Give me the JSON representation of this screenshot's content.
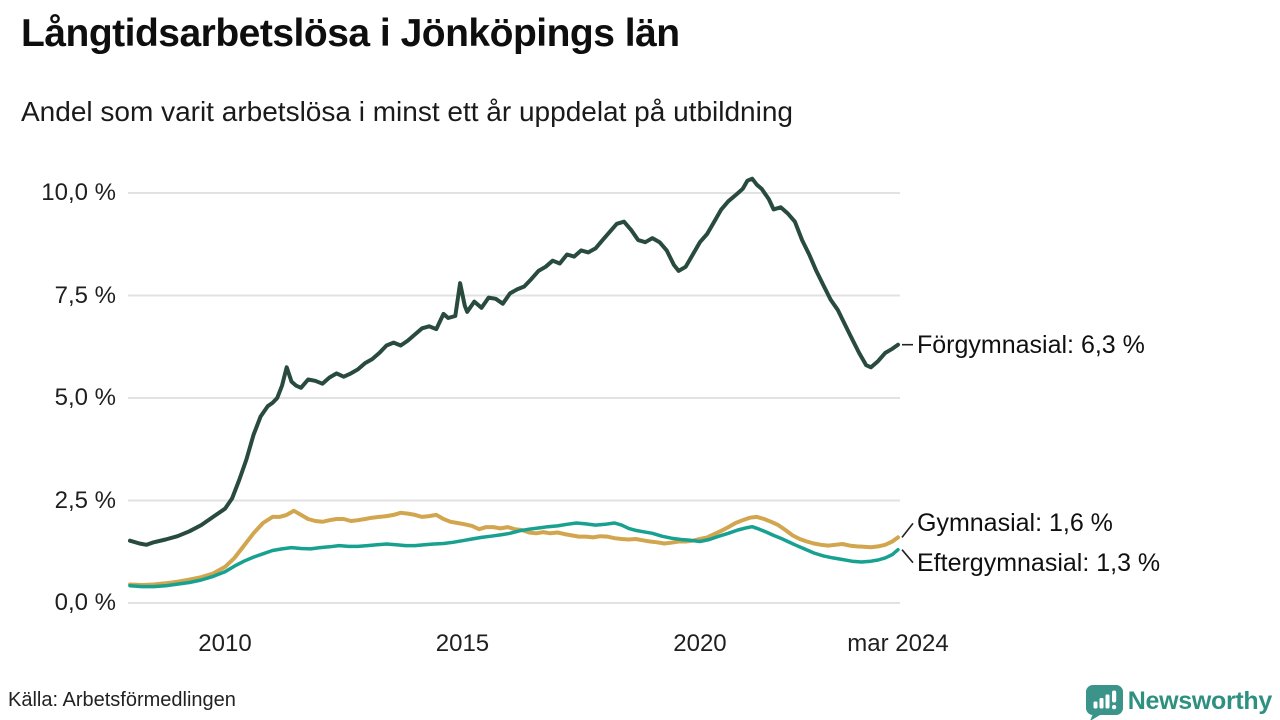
{
  "header": {
    "title": "Långtidsarbetslösa i Jönköpings län",
    "subtitle": "Andel som varit arbetslösa i minst ett år uppdelat på utbildning"
  },
  "footer": {
    "source": "Källa: Arbetsförmedlingen",
    "brand": "Newsworthy",
    "brand_text_color": "#2e9080",
    "brand_icon_color": "#3a948a"
  },
  "chart_data": {
    "type": "line",
    "title": "Långtidsarbetslösa i Jönköpings län",
    "subtitle": "Andel som varit arbetslösa i minst ett år uppdelat på utbildning",
    "xlabel": "",
    "ylabel": "",
    "xlim": [
      2008.0,
      2024.17
    ],
    "ylim": [
      0,
      10
    ],
    "grid": true,
    "gridline_color": "#e2e2e2",
    "legend_position": "end-of-line-labels-right",
    "yticks": [
      {
        "value": 0,
        "label": "0,0 %"
      },
      {
        "value": 2.5,
        "label": "2,5 %"
      },
      {
        "value": 5,
        "label": "5,0 %"
      },
      {
        "value": 7.5,
        "label": "7,5 %"
      },
      {
        "value": 10,
        "label": "10,0 %"
      }
    ],
    "xticks": [
      {
        "value": 2010,
        "label": "2010"
      },
      {
        "value": 2015,
        "label": "2015"
      },
      {
        "value": 2020,
        "label": "2020"
      },
      {
        "value": 2024.17,
        "label": "mar 2024"
      }
    ],
    "series": [
      {
        "name": "Förgymnasial",
        "end_label": "Förgymnasial: 6,3 %",
        "current_value": "6,3 %",
        "color": "#284b3e",
        "stroke_width": 4,
        "x": [
          2008.0,
          2008.2,
          2008.35,
          2008.5,
          2008.75,
          2009.0,
          2009.25,
          2009.5,
          2009.75,
          2010.0,
          2010.15,
          2010.3,
          2010.45,
          2010.6,
          2010.75,
          2010.9,
          2011.0,
          2011.1,
          2011.2,
          2011.3,
          2011.4,
          2011.5,
          2011.6,
          2011.75,
          2011.9,
          2012.05,
          2012.2,
          2012.35,
          2012.5,
          2012.65,
          2012.8,
          2012.95,
          2013.1,
          2013.25,
          2013.4,
          2013.55,
          2013.7,
          2013.85,
          2014.0,
          2014.15,
          2014.3,
          2014.45,
          2014.6,
          2014.7,
          2014.85,
          2014.95,
          2015.05,
          2015.1,
          2015.25,
          2015.4,
          2015.55,
          2015.7,
          2015.85,
          2016.0,
          2016.15,
          2016.3,
          2016.45,
          2016.6,
          2016.75,
          2016.9,
          2017.05,
          2017.2,
          2017.35,
          2017.5,
          2017.65,
          2017.8,
          2017.95,
          2018.1,
          2018.25,
          2018.4,
          2018.55,
          2018.7,
          2018.85,
          2019.0,
          2019.15,
          2019.3,
          2019.45,
          2019.55,
          2019.7,
          2019.85,
          2020.0,
          2020.15,
          2020.3,
          2020.45,
          2020.6,
          2020.75,
          2020.9,
          2021.0,
          2021.1,
          2021.2,
          2021.3,
          2021.45,
          2021.55,
          2021.7,
          2021.85,
          2022.0,
          2022.15,
          2022.3,
          2022.45,
          2022.6,
          2022.75,
          2022.9,
          2023.05,
          2023.2,
          2023.35,
          2023.5,
          2023.6,
          2023.75,
          2023.9,
          2024.05,
          2024.17
        ],
        "values": [
          1.52,
          1.45,
          1.42,
          1.48,
          1.55,
          1.63,
          1.75,
          1.9,
          2.1,
          2.3,
          2.55,
          3.0,
          3.5,
          4.1,
          4.55,
          4.8,
          4.88,
          5.0,
          5.3,
          5.75,
          5.4,
          5.3,
          5.25,
          5.45,
          5.42,
          5.35,
          5.5,
          5.6,
          5.52,
          5.6,
          5.7,
          5.85,
          5.95,
          6.1,
          6.28,
          6.35,
          6.28,
          6.4,
          6.55,
          6.7,
          6.75,
          6.68,
          7.05,
          6.95,
          7.0,
          7.8,
          7.25,
          7.1,
          7.35,
          7.2,
          7.45,
          7.42,
          7.3,
          7.55,
          7.65,
          7.72,
          7.9,
          8.1,
          8.2,
          8.35,
          8.28,
          8.5,
          8.45,
          8.6,
          8.55,
          8.65,
          8.85,
          9.05,
          9.25,
          9.3,
          9.1,
          8.85,
          8.8,
          8.9,
          8.8,
          8.6,
          8.25,
          8.1,
          8.2,
          8.5,
          8.8,
          9.0,
          9.3,
          9.6,
          9.8,
          9.95,
          10.1,
          10.3,
          10.35,
          10.2,
          10.1,
          9.85,
          9.6,
          9.65,
          9.5,
          9.3,
          8.85,
          8.5,
          8.1,
          7.75,
          7.4,
          7.15,
          6.8,
          6.45,
          6.1,
          5.8,
          5.75,
          5.9,
          6.1,
          6.2,
          6.3
        ]
      },
      {
        "name": "Gymnasial",
        "end_label": "Gymnasial: 1,6 %",
        "current_value": "1,6 %",
        "color": "#d1a64e",
        "stroke_width": 4,
        "x": [
          2008.0,
          2008.25,
          2008.5,
          2008.75,
          2009.0,
          2009.25,
          2009.5,
          2009.75,
          2010.0,
          2010.2,
          2010.4,
          2010.6,
          2010.8,
          2011.0,
          2011.15,
          2011.3,
          2011.45,
          2011.6,
          2011.75,
          2011.9,
          2012.05,
          2012.2,
          2012.35,
          2012.5,
          2012.65,
          2012.8,
          2012.95,
          2013.1,
          2013.25,
          2013.4,
          2013.55,
          2013.7,
          2013.85,
          2014.0,
          2014.15,
          2014.3,
          2014.45,
          2014.6,
          2014.75,
          2014.9,
          2015.05,
          2015.2,
          2015.35,
          2015.5,
          2015.65,
          2015.8,
          2015.95,
          2016.1,
          2016.25,
          2016.4,
          2016.55,
          2016.7,
          2016.85,
          2017.0,
          2017.15,
          2017.3,
          2017.45,
          2017.6,
          2017.75,
          2017.9,
          2018.05,
          2018.2,
          2018.35,
          2018.5,
          2018.65,
          2018.8,
          2018.95,
          2019.1,
          2019.25,
          2019.4,
          2019.55,
          2019.7,
          2019.85,
          2020.0,
          2020.15,
          2020.3,
          2020.45,
          2020.6,
          2020.75,
          2020.9,
          2021.05,
          2021.2,
          2021.35,
          2021.5,
          2021.65,
          2021.8,
          2021.95,
          2022.1,
          2022.25,
          2022.4,
          2022.55,
          2022.7,
          2022.85,
          2023.0,
          2023.15,
          2023.3,
          2023.45,
          2023.6,
          2023.75,
          2023.9,
          2024.05,
          2024.17
        ],
        "values": [
          0.45,
          0.44,
          0.45,
          0.48,
          0.52,
          0.57,
          0.63,
          0.72,
          0.88,
          1.1,
          1.4,
          1.7,
          1.95,
          2.1,
          2.1,
          2.15,
          2.25,
          2.15,
          2.05,
          2.0,
          1.98,
          2.02,
          2.05,
          2.05,
          2.0,
          2.02,
          2.05,
          2.08,
          2.1,
          2.12,
          2.15,
          2.2,
          2.18,
          2.15,
          2.1,
          2.12,
          2.15,
          2.05,
          1.98,
          1.95,
          1.92,
          1.88,
          1.8,
          1.85,
          1.85,
          1.82,
          1.85,
          1.8,
          1.78,
          1.72,
          1.7,
          1.73,
          1.7,
          1.72,
          1.68,
          1.65,
          1.62,
          1.62,
          1.6,
          1.63,
          1.62,
          1.58,
          1.56,
          1.55,
          1.56,
          1.53,
          1.5,
          1.48,
          1.45,
          1.47,
          1.5,
          1.5,
          1.52,
          1.56,
          1.6,
          1.68,
          1.76,
          1.85,
          1.95,
          2.02,
          2.08,
          2.1,
          2.05,
          1.98,
          1.9,
          1.78,
          1.65,
          1.56,
          1.5,
          1.45,
          1.42,
          1.4,
          1.42,
          1.44,
          1.4,
          1.38,
          1.37,
          1.36,
          1.38,
          1.42,
          1.5,
          1.6
        ]
      },
      {
        "name": "Eftergymnasial",
        "end_label": "Eftergymnasial: 1,3 %",
        "current_value": "1,3 %",
        "color": "#18a191",
        "stroke_width": 3.5,
        "x": [
          2008.0,
          2008.25,
          2008.5,
          2008.75,
          2009.0,
          2009.25,
          2009.5,
          2009.75,
          2010.0,
          2010.2,
          2010.4,
          2010.6,
          2010.8,
          2011.0,
          2011.2,
          2011.4,
          2011.6,
          2011.8,
          2012.0,
          2012.2,
          2012.4,
          2012.6,
          2012.8,
          2013.0,
          2013.2,
          2013.4,
          2013.6,
          2013.8,
          2014.0,
          2014.2,
          2014.4,
          2014.6,
          2014.8,
          2015.0,
          2015.2,
          2015.4,
          2015.6,
          2015.8,
          2016.0,
          2016.2,
          2016.4,
          2016.6,
          2016.8,
          2017.0,
          2017.2,
          2017.4,
          2017.6,
          2017.8,
          2018.0,
          2018.2,
          2018.35,
          2018.5,
          2018.65,
          2018.8,
          2019.0,
          2019.2,
          2019.4,
          2019.6,
          2019.8,
          2020.0,
          2020.2,
          2020.4,
          2020.6,
          2020.8,
          2021.0,
          2021.1,
          2021.25,
          2021.4,
          2021.55,
          2021.7,
          2021.85,
          2022.0,
          2022.2,
          2022.4,
          2022.6,
          2022.8,
          2023.0,
          2023.2,
          2023.4,
          2023.6,
          2023.75,
          2023.9,
          2024.05,
          2024.17
        ],
        "values": [
          0.42,
          0.4,
          0.4,
          0.42,
          0.46,
          0.5,
          0.56,
          0.65,
          0.76,
          0.9,
          1.02,
          1.12,
          1.2,
          1.28,
          1.32,
          1.35,
          1.33,
          1.32,
          1.35,
          1.37,
          1.4,
          1.38,
          1.38,
          1.4,
          1.42,
          1.44,
          1.42,
          1.4,
          1.4,
          1.42,
          1.44,
          1.45,
          1.48,
          1.52,
          1.56,
          1.6,
          1.63,
          1.66,
          1.7,
          1.76,
          1.8,
          1.83,
          1.86,
          1.88,
          1.92,
          1.95,
          1.93,
          1.9,
          1.92,
          1.95,
          1.9,
          1.82,
          1.77,
          1.74,
          1.7,
          1.63,
          1.58,
          1.55,
          1.53,
          1.5,
          1.55,
          1.63,
          1.7,
          1.78,
          1.84,
          1.86,
          1.8,
          1.73,
          1.65,
          1.58,
          1.5,
          1.42,
          1.32,
          1.22,
          1.15,
          1.1,
          1.06,
          1.02,
          1.0,
          1.02,
          1.05,
          1.1,
          1.18,
          1.3
        ]
      }
    ]
  }
}
